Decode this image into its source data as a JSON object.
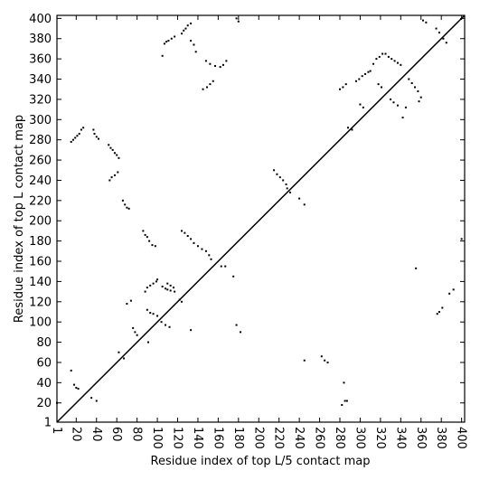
{
  "chart_data": {
    "type": "scatter",
    "x_label": "Residue index of top L/5 contact map",
    "y_label": "Residue index of top L contact map",
    "xlim": [
      1,
      403
    ],
    "ylim": [
      1,
      403
    ],
    "xticks": [
      1,
      20,
      40,
      60,
      80,
      100,
      120,
      140,
      160,
      180,
      200,
      220,
      240,
      260,
      280,
      300,
      320,
      340,
      360,
      380,
      400
    ],
    "yticks": [
      1,
      20,
      40,
      60,
      80,
      100,
      120,
      140,
      160,
      180,
      200,
      220,
      240,
      260,
      280,
      300,
      320,
      340,
      360,
      380,
      400
    ],
    "series": [
      {
        "color": "#000000",
        "x": [
          1,
          15,
          18,
          20,
          22,
          35,
          40,
          15,
          17,
          19,
          21,
          23,
          25,
          27,
          37,
          38,
          40,
          42,
          52,
          54,
          56,
          58,
          60,
          62,
          53,
          55,
          58,
          61,
          66,
          68,
          70,
          72,
          62,
          67,
          70,
          74,
          76,
          78,
          80,
          86,
          88,
          90,
          92,
          95,
          98,
          88,
          90,
          93,
          96,
          99,
          100,
          91,
          90,
          93,
          96,
          100,
          104,
          108,
          112,
          105,
          108,
          110,
          113,
          117,
          110,
          113,
          116,
          122,
          124,
          124,
          127,
          130,
          133,
          136,
          140,
          144,
          148,
          151,
          153,
          133,
          105,
          107,
          109,
          111,
          114,
          117,
          124,
          126,
          128,
          130,
          133,
          133,
          136,
          138,
          145,
          149,
          152,
          155,
          148,
          152,
          157,
          162,
          165,
          168,
          163,
          167,
          175,
          178,
          180,
          215,
          218,
          221,
          224,
          227,
          228,
          231,
          240,
          245,
          178,
          182,
          245,
          262,
          265,
          268,
          282,
          285,
          287,
          284,
          280,
          283,
          286,
          288,
          292,
          296,
          299,
          302,
          305,
          308,
          310,
          300,
          303,
          313,
          316,
          319,
          322,
          325,
          328,
          331,
          334,
          337,
          340,
          318,
          321,
          330,
          333,
          337,
          342,
          345,
          348,
          351,
          354,
          357,
          360,
          358,
          355,
          362,
          365,
          375,
          378,
          382,
          385,
          376,
          378,
          381,
          388,
          392,
          400
        ],
        "y": [
          20,
          52,
          38,
          35,
          34,
          25,
          22,
          278,
          280,
          282,
          284,
          286,
          290,
          292,
          290,
          286,
          283,
          281,
          275,
          272,
          270,
          267,
          265,
          262,
          240,
          243,
          245,
          248,
          220,
          216,
          213,
          212,
          70,
          64,
          118,
          121,
          94,
          90,
          87,
          190,
          186,
          184,
          180,
          176,
          175,
          130,
          134,
          136,
          138,
          140,
          142,
          80,
          112,
          109,
          108,
          106,
          100,
          97,
          95,
          135,
          133,
          132,
          131,
          130,
          138,
          136,
          134,
          122,
          120,
          190,
          188,
          185,
          182,
          178,
          175,
          172,
          170,
          166,
          162,
          92,
          363,
          375,
          377,
          378,
          380,
          382,
          385,
          388,
          390,
          393,
          395,
          378,
          374,
          367,
          330,
          332,
          335,
          338,
          358,
          355,
          353,
          352,
          354,
          358,
          155,
          155,
          145,
          400,
          397,
          250,
          246,
          243,
          240,
          236,
          232,
          228,
          222,
          216,
          97,
          90,
          62,
          66,
          62,
          60,
          18,
          22,
          22,
          40,
          330,
          332,
          335,
          292,
          290,
          338,
          340,
          343,
          345,
          347,
          348,
          315,
          312,
          355,
          360,
          362,
          365,
          365,
          362,
          360,
          358,
          356,
          354,
          335,
          332,
          320,
          317,
          314,
          302,
          312,
          340,
          336,
          332,
          328,
          322,
          318,
          153,
          398,
          396,
          390,
          386,
          380,
          376,
          108,
          110,
          114,
          128,
          132,
          182
        ]
      }
    ]
  }
}
